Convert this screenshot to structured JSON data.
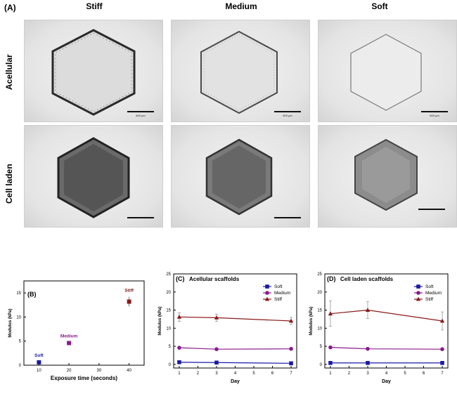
{
  "figure": {
    "panel_a_label": "(A)",
    "columns": [
      "Stiff",
      "Medium",
      "Soft"
    ],
    "rows": [
      "Acellular",
      "Cell laden"
    ],
    "scale_text": "500 μm",
    "images": [
      {
        "row": "Acellular",
        "column": "Stiff",
        "description": "hexagonal scaffold, low density"
      },
      {
        "row": "Acellular",
        "column": "Medium",
        "description": "hexagonal scaffold, low density"
      },
      {
        "row": "Acellular",
        "column": "Soft",
        "description": "hexagonal scaffold, faint"
      },
      {
        "row": "Cell laden",
        "column": "Stiff",
        "description": "hexagonal scaffold, dense cells"
      },
      {
        "row": "Cell laden",
        "column": "Medium",
        "description": "hexagonal scaffold, dense cells"
      },
      {
        "row": "Cell laden",
        "column": "Soft",
        "description": "hexagonal scaffold, radial cells"
      }
    ]
  },
  "chart_data": [
    {
      "panel": "(B)",
      "type": "scatter",
      "title": "",
      "xlabel": "Exposure time (seconds)",
      "ylabel": "Modulus (kPa)",
      "xlim": [
        5,
        45
      ],
      "ylim": [
        0,
        17.5
      ],
      "xticks": [
        10,
        20,
        30,
        40
      ],
      "yticks": [
        0,
        5,
        10,
        15
      ],
      "grid": false,
      "points": [
        {
          "x": 10,
          "y": 0.6,
          "err": 0.1,
          "label": "Soft",
          "color": "#1a1aa6"
        },
        {
          "x": 20,
          "y": 4.6,
          "err": 0.2,
          "label": "Medium",
          "color": "#8b1a8b"
        },
        {
          "x": 40,
          "y": 13.2,
          "err": 1.0,
          "label": "Stiff",
          "color": "#8b1a1a"
        }
      ]
    },
    {
      "panel": "(C)",
      "type": "line",
      "title": "Acellular scaffolds",
      "xlabel": "Day",
      "ylabel": "Modulus (kPa)",
      "xlim": [
        0.7,
        7.3
      ],
      "ylim": [
        -1,
        25
      ],
      "xticks": [
        1,
        2,
        3,
        4,
        5,
        6,
        7
      ],
      "yticks": [
        0,
        5,
        10,
        15,
        20,
        25
      ],
      "legend": "top-right",
      "grid": false,
      "x": [
        1,
        3,
        7
      ],
      "series": [
        {
          "name": "Soft",
          "color": "#1a1aa6",
          "marker": "square",
          "values": [
            0.6,
            0.5,
            0.3
          ],
          "errors": [
            0.1,
            0.1,
            0.1
          ]
        },
        {
          "name": "Medium",
          "color": "#8b1a8b",
          "marker": "circle",
          "values": [
            4.6,
            4.2,
            4.3
          ],
          "errors": [
            0.2,
            0.2,
            0.2
          ]
        },
        {
          "name": "Stiff",
          "color": "#8b1a1a",
          "marker": "triangle",
          "values": [
            13.1,
            12.9,
            12.0
          ],
          "errors": [
            1.2,
            1.0,
            1.0
          ]
        }
      ]
    },
    {
      "panel": "(D)",
      "type": "line",
      "title": "Cell laden scaffolds",
      "xlabel": "Day",
      "ylabel": "Modulus (kPa)",
      "xlim": [
        0.7,
        7.3
      ],
      "ylim": [
        -1,
        25
      ],
      "xticks": [
        1,
        2,
        3,
        4,
        5,
        6,
        7
      ],
      "yticks": [
        0,
        5,
        10,
        15,
        20,
        25
      ],
      "legend": "top-right",
      "grid": false,
      "x": [
        1,
        3,
        7
      ],
      "series": [
        {
          "name": "Soft",
          "color": "#1a1aa6",
          "marker": "square",
          "values": [
            0.4,
            0.4,
            0.4
          ],
          "errors": [
            0.1,
            0.1,
            0.1
          ]
        },
        {
          "name": "Medium",
          "color": "#8b1a8b",
          "marker": "circle",
          "values": [
            4.7,
            4.3,
            4.2
          ],
          "errors": [
            0.2,
            0.2,
            0.2
          ]
        },
        {
          "name": "Stiff",
          "color": "#8b1a1a",
          "marker": "triangle",
          "values": [
            14.0,
            15.0,
            12.0
          ],
          "errors": [
            3.5,
            2.3,
            2.5
          ]
        }
      ]
    }
  ]
}
